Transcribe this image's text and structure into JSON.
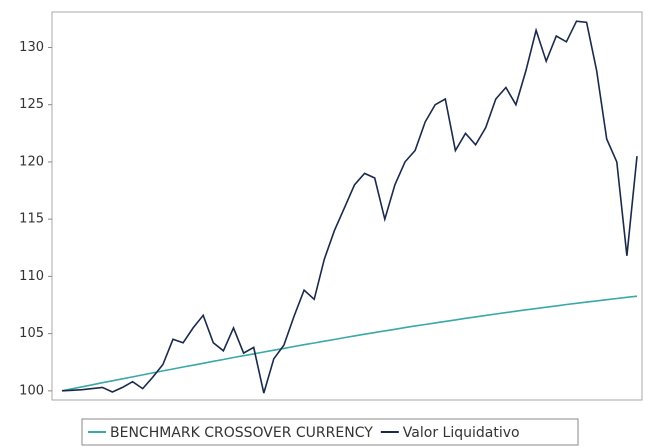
{
  "chart_data": {
    "type": "line",
    "categories": [
      null,
      null,
      null,
      null,
      null,
      null,
      null,
      null,
      null,
      null,
      null,
      null,
      null,
      null,
      null,
      null,
      null,
      null,
      null,
      null,
      null,
      null,
      null,
      null,
      null,
      null,
      null,
      null,
      null,
      null,
      null,
      null,
      null,
      null,
      null,
      null,
      null,
      null,
      null,
      null,
      null,
      null,
      null,
      null,
      null,
      null,
      null,
      null,
      null,
      null,
      null,
      null,
      null,
      null,
      null,
      null,
      null,
      null
    ],
    "series": [
      {
        "name": "BENCHMARK CROSSOVER CURRENCY",
        "color": "#3aa8a8",
        "values": [
          100,
          100.18,
          100.35,
          100.53,
          100.71,
          100.88,
          101.05,
          101.22,
          101.39,
          101.57,
          101.74,
          101.91,
          102.08,
          102.24,
          102.41,
          102.58,
          102.74,
          102.91,
          103.07,
          103.23,
          103.39,
          103.55,
          103.71,
          103.87,
          104.03,
          104.18,
          104.34,
          104.49,
          104.65,
          104.8,
          104.95,
          105.09,
          105.24,
          105.38,
          105.53,
          105.67,
          105.8,
          105.94,
          106.07,
          106.2,
          106.34,
          106.46,
          106.59,
          106.71,
          106.84,
          106.96,
          107.08,
          107.19,
          107.31,
          107.42,
          107.54,
          107.65,
          107.75,
          107.86,
          107.96,
          108.07,
          108.17,
          108.27
        ]
      },
      {
        "name": "Valor Liquidativo",
        "color": "#1a2a4a",
        "values": [
          100,
          100.05,
          100.1,
          100.2,
          100.3,
          99.9,
          100.3,
          100.8,
          100.2,
          101.2,
          102.3,
          104.5,
          104.2,
          105.5,
          106.6,
          104.2,
          103.5,
          105.5,
          103.3,
          103.8,
          99.8,
          102.8,
          104,
          106.5,
          108.8,
          108,
          111.5,
          114,
          116,
          118,
          119,
          118.6,
          115,
          118,
          120,
          121,
          123.5,
          125,
          125.5,
          121,
          122.5,
          121.5,
          123,
          125.5,
          126.5,
          125,
          128,
          131.5,
          128.8,
          131,
          130.5,
          132.3,
          132.2,
          128,
          122,
          120,
          111.8,
          120.5
        ]
      }
    ],
    "ylim": [
      99.2,
      133.1
    ],
    "yticks": [
      100,
      105,
      110,
      115,
      120,
      125,
      130
    ],
    "legend": "bottom"
  }
}
